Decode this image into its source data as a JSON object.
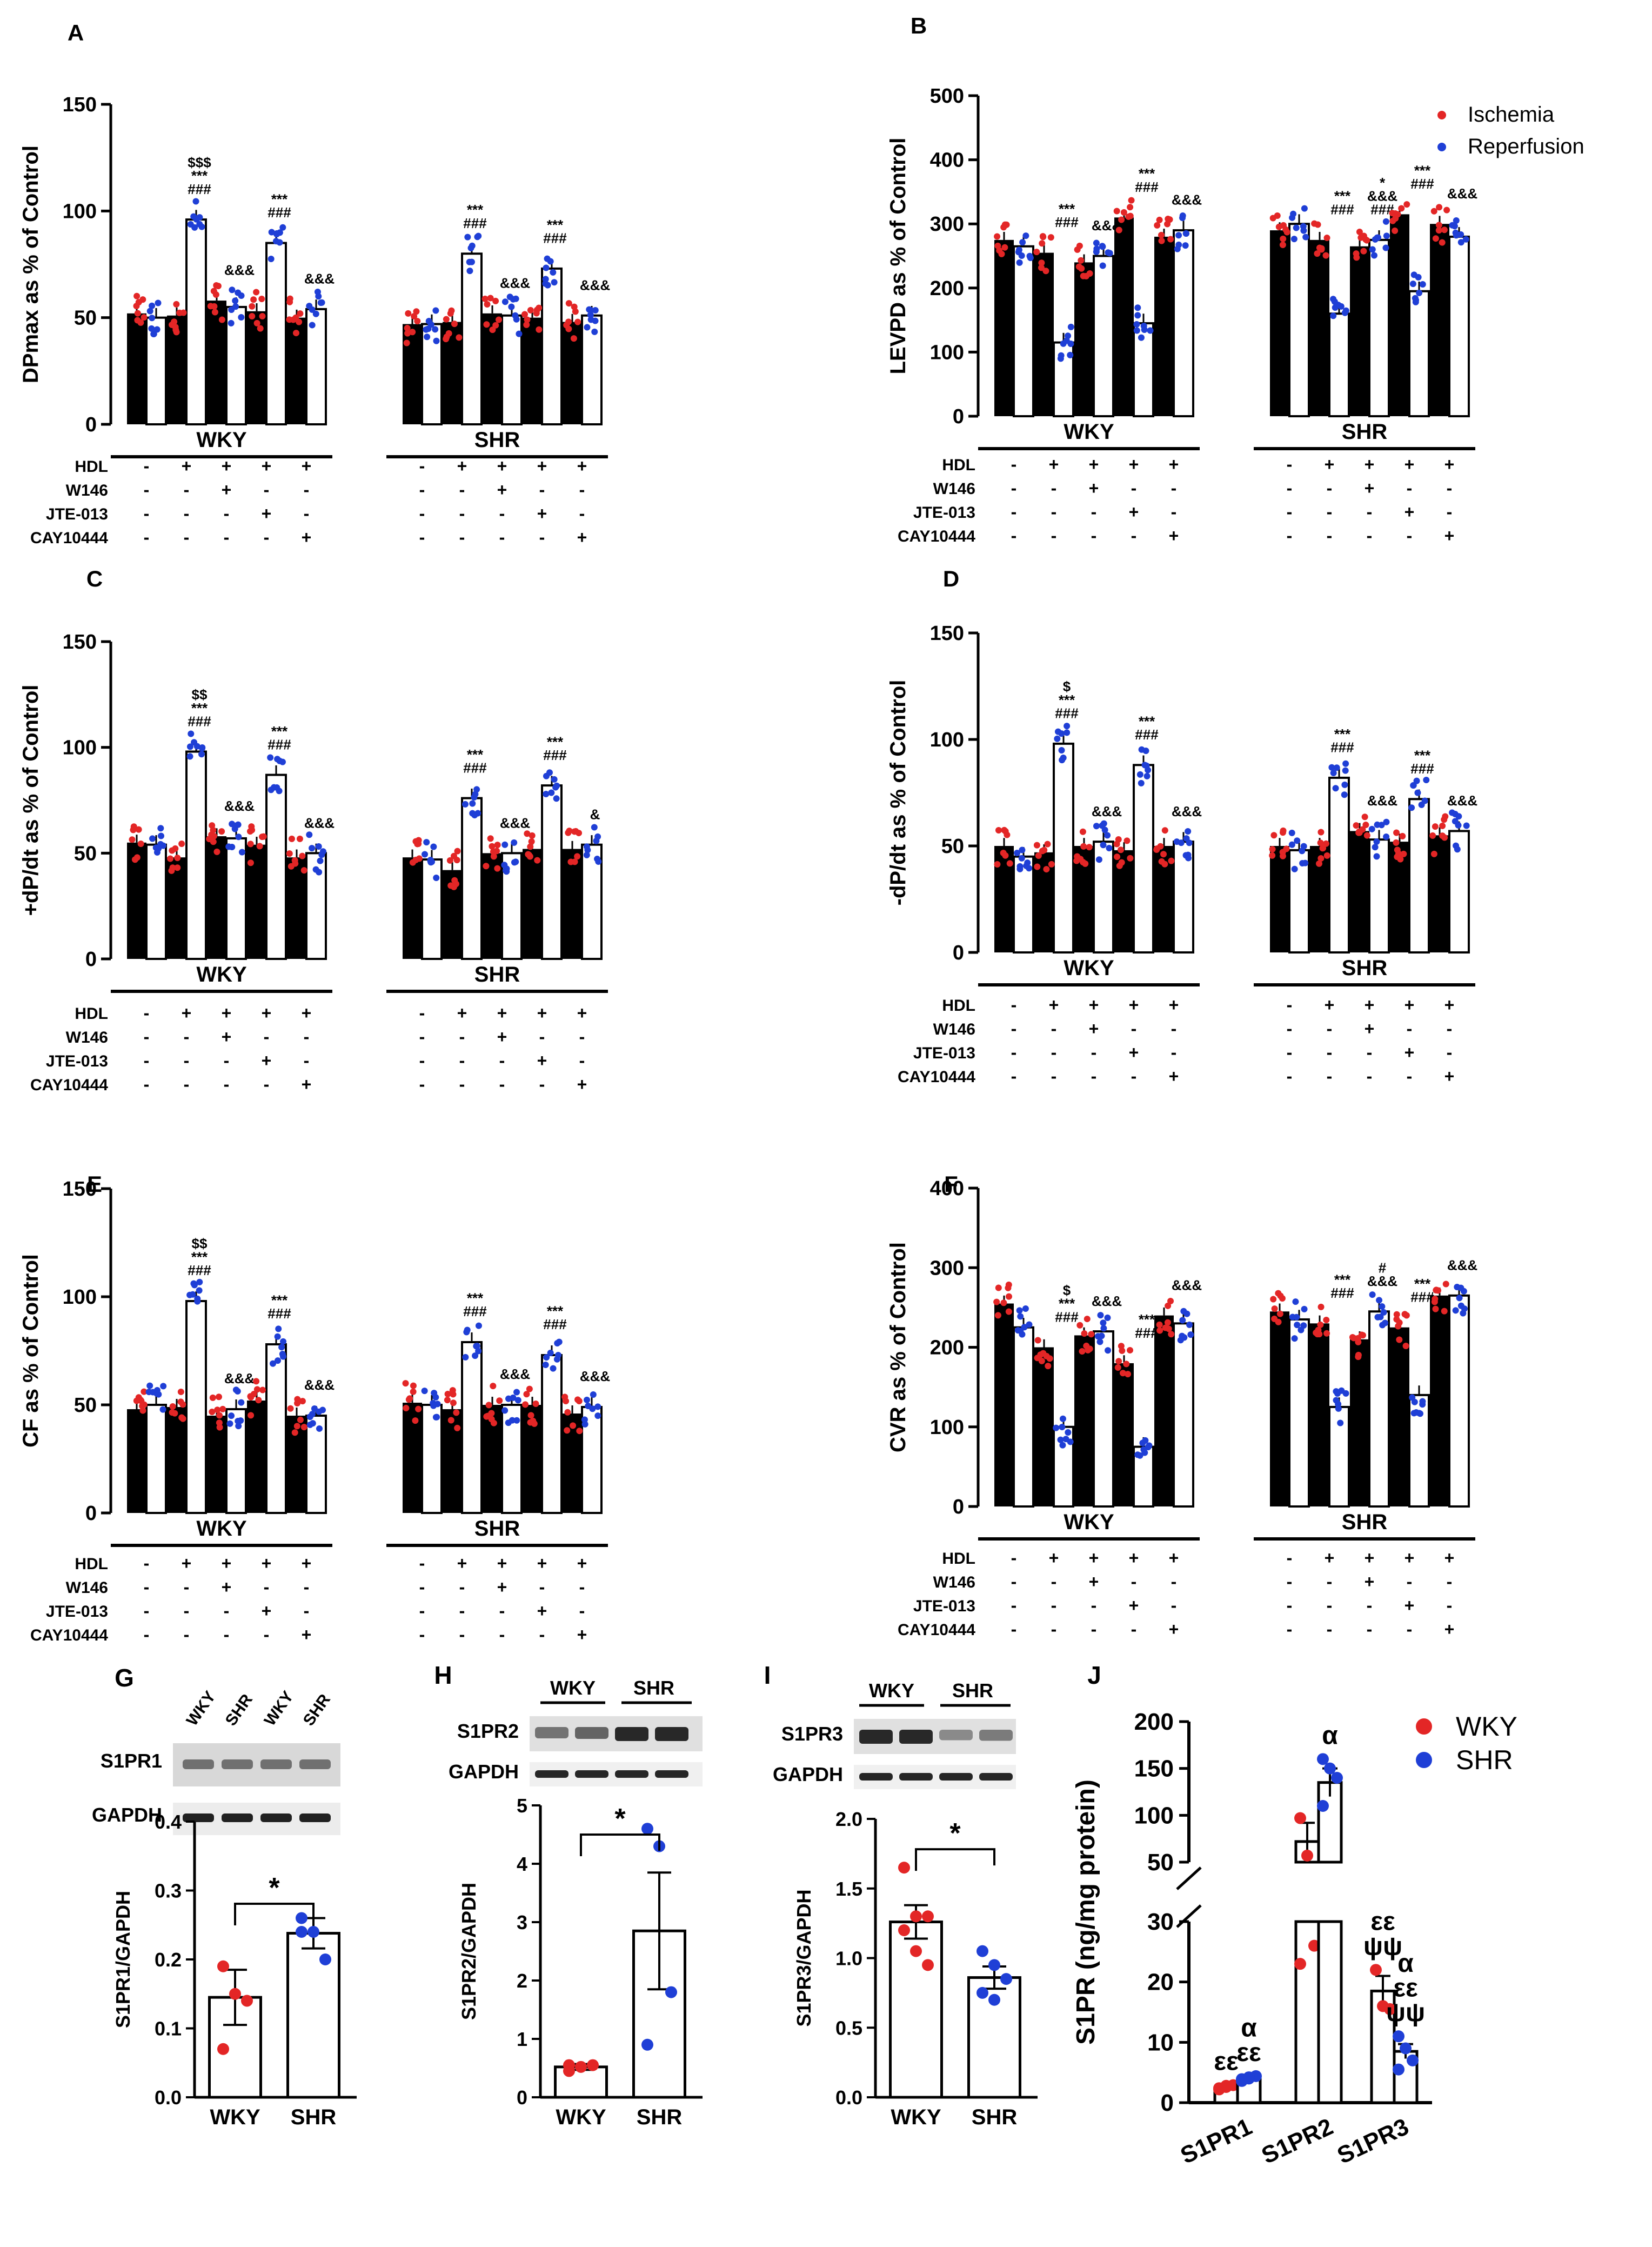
{
  "legend_top": {
    "ischemia": "Ischemia",
    "reperfusion": "Reperfusion",
    "ischemia_color": "#e32626",
    "reperfusion_color": "#1f3fd6"
  },
  "legend_j": {
    "wky": "WKY",
    "shr": "SHR",
    "wky_color": "#e32626",
    "shr_color": "#1f3fd6"
  },
  "chart_data": [
    {
      "panel": "A",
      "type": "bar",
      "ylabel": "DPmax as % of Control",
      "ylim": [
        0,
        150
      ],
      "ticks": [
        0,
        50,
        100,
        150
      ],
      "groups": [
        "WKY",
        "SHR"
      ],
      "treatments": {
        "HDL": [
          "-",
          "+",
          "+",
          "+",
          "+"
        ],
        "W146": [
          "-",
          "-",
          "+",
          "-",
          "-"
        ],
        "JTE-013": [
          "-",
          "-",
          "-",
          "+",
          "-"
        ],
        "CAY10444": [
          "-",
          "-",
          "-",
          "-",
          "+"
        ]
      },
      "series": [
        {
          "name": "Ischemia",
          "WKY": [
            52,
            51,
            58,
            53,
            50
          ],
          "SHR": [
            47,
            48,
            52,
            50,
            48
          ]
        },
        {
          "name": "Reperfusion",
          "WKY": [
            50,
            96,
            55,
            85,
            54
          ],
          "SHR": [
            47,
            80,
            51,
            73,
            51
          ]
        }
      ],
      "annotations": {
        "WKY": [
          "",
          "$$$\n***\n###",
          "&&&",
          "***\n###",
          "&&&"
        ],
        "SHR": [
          "",
          "***\n###",
          "&&&",
          "***\n###",
          "&&&"
        ]
      }
    },
    {
      "panel": "B",
      "type": "bar",
      "ylabel": "LEVPD as % of Control",
      "ylim": [
        0,
        500
      ],
      "ticks": [
        0,
        100,
        200,
        300,
        400,
        500
      ],
      "groups": [
        "WKY",
        "SHR"
      ],
      "treatments": {
        "HDL": [
          "-",
          "+",
          "+",
          "+",
          "+"
        ],
        "W146": [
          "-",
          "-",
          "+",
          "-",
          "-"
        ],
        "JTE-013": [
          "-",
          "-",
          "-",
          "+",
          "-"
        ],
        "CAY10444": [
          "-",
          "-",
          "-",
          "-",
          "+"
        ]
      },
      "series": [
        {
          "name": "Ischemia",
          "WKY": [
            275,
            255,
            240,
            310,
            280
          ],
          "SHR": [
            290,
            275,
            265,
            315,
            300
          ]
        },
        {
          "name": "Reperfusion",
          "WKY": [
            265,
            115,
            250,
            145,
            290
          ],
          "SHR": [
            300,
            160,
            275,
            195,
            280
          ]
        }
      ],
      "annotations": {
        "WKY": [
          "",
          "***\n###",
          "&&&",
          "***\n###",
          "&&&"
        ],
        "SHR": [
          "",
          "***\n###",
          "*\n&&&\n###",
          "***\n###",
          "&&&"
        ]
      }
    },
    {
      "panel": "C",
      "type": "bar",
      "ylabel": "+dP/dt as % of Control",
      "ylim": [
        0,
        150
      ],
      "ticks": [
        0,
        50,
        100,
        150
      ],
      "groups": [
        "WKY",
        "SHR"
      ],
      "treatments": {
        "HDL": [
          "-",
          "+",
          "+",
          "+",
          "+"
        ],
        "W146": [
          "-",
          "-",
          "+",
          "-",
          "-"
        ],
        "JTE-013": [
          "-",
          "-",
          "-",
          "+",
          "-"
        ],
        "CAY10444": [
          "-",
          "-",
          "-",
          "-",
          "+"
        ]
      },
      "series": [
        {
          "name": "Ischemia",
          "WKY": [
            55,
            48,
            58,
            54,
            48
          ],
          "SHR": [
            48,
            42,
            50,
            52,
            52
          ]
        },
        {
          "name": "Reperfusion",
          "WKY": [
            54,
            98,
            57,
            87,
            50
          ],
          "SHR": [
            47,
            76,
            50,
            82,
            54
          ]
        }
      ],
      "annotations": {
        "WKY": [
          "",
          "$$\n***\n###",
          "&&&",
          "***\n###",
          "&&&"
        ],
        "SHR": [
          "",
          "***\n###",
          "&&&",
          "***\n###",
          "&"
        ]
      }
    },
    {
      "panel": "D",
      "type": "bar",
      "ylabel": "-dP/dt as % of Control",
      "ylim": [
        0,
        150
      ],
      "ticks": [
        0,
        50,
        100,
        150
      ],
      "groups": [
        "WKY",
        "SHR"
      ],
      "treatments": {
        "HDL": [
          "-",
          "+",
          "+",
          "+",
          "+"
        ],
        "W146": [
          "-",
          "-",
          "+",
          "-",
          "-"
        ],
        "JTE-013": [
          "-",
          "-",
          "-",
          "+",
          "-"
        ],
        "CAY10444": [
          "-",
          "-",
          "-",
          "-",
          "+"
        ]
      },
      "series": [
        {
          "name": "Ischemia",
          "WKY": [
            50,
            47,
            50,
            48,
            50
          ],
          "SHR": [
            50,
            50,
            57,
            52,
            55
          ]
        },
        {
          "name": "Reperfusion",
          "WKY": [
            45,
            98,
            52,
            88,
            52
          ],
          "SHR": [
            48,
            82,
            53,
            72,
            57
          ]
        }
      ],
      "annotations": {
        "WKY": [
          "",
          "$\n***\n###",
          "&&&",
          "***\n###",
          "&&&"
        ],
        "SHR": [
          "",
          "***\n###",
          "&&&",
          "***\n###",
          "&&&"
        ]
      }
    },
    {
      "panel": "E",
      "type": "bar",
      "ylabel": "CF as % of Control",
      "ylim": [
        0,
        150
      ],
      "ticks": [
        0,
        50,
        100,
        150
      ],
      "groups": [
        "WKY",
        "SHR"
      ],
      "treatments": {
        "HDL": [
          "-",
          "+",
          "+",
          "+",
          "+"
        ],
        "W146": [
          "-",
          "-",
          "+",
          "-",
          "-"
        ],
        "JTE-013": [
          "-",
          "-",
          "-",
          "+",
          "-"
        ],
        "CAY10444": [
          "-",
          "-",
          "-",
          "-",
          "+"
        ]
      },
      "series": [
        {
          "name": "Ischemia",
          "WKY": [
            48,
            49,
            45,
            52,
            45
          ],
          "SHR": [
            51,
            48,
            50,
            50,
            46
          ]
        },
        {
          "name": "Reperfusion",
          "WKY": [
            50,
            98,
            48,
            78,
            45
          ],
          "SHR": [
            50,
            79,
            50,
            73,
            49
          ]
        }
      ],
      "annotations": {
        "WKY": [
          "",
          "$$\n***\n###",
          "&&&",
          "***\n###",
          "&&&"
        ],
        "SHR": [
          "",
          "***\n###",
          "&&&",
          "***\n###",
          "&&&"
        ]
      }
    },
    {
      "panel": "F",
      "type": "bar",
      "ylabel": "CVR as % of Control",
      "ylim": [
        0,
        400
      ],
      "ticks": [
        0,
        100,
        200,
        300,
        400
      ],
      "groups": [
        "WKY",
        "SHR"
      ],
      "treatments": {
        "HDL": [
          "-",
          "+",
          "+",
          "+",
          "+"
        ],
        "W146": [
          "-",
          "-",
          "+",
          "-",
          "-"
        ],
        "JTE-013": [
          "-",
          "-",
          "-",
          "+",
          "-"
        ],
        "CAY10444": [
          "-",
          "-",
          "-",
          "-",
          "+"
        ]
      },
      "series": [
        {
          "name": "Ischemia",
          "WKY": [
            255,
            200,
            215,
            180,
            240
          ],
          "SHR": [
            245,
            230,
            210,
            225,
            265
          ]
        },
        {
          "name": "Reperfusion",
          "WKY": [
            225,
            100,
            220,
            75,
            230
          ],
          "SHR": [
            235,
            125,
            245,
            140,
            265
          ]
        }
      ],
      "annotations": {
        "WKY": [
          "",
          "$\n***\n###",
          "&&&",
          "***\n###",
          "&&&"
        ],
        "SHR": [
          "",
          "***\n###",
          "#\n&&&",
          "***\n###",
          "&&&"
        ]
      }
    },
    {
      "panel": "G",
      "type": "bar",
      "blot_labels": [
        "S1PR1",
        "GAPDH"
      ],
      "lane_labels": [
        "WKY",
        "SHR",
        "WKY",
        "SHR"
      ],
      "ylabel": "S1PR1/GAPDH",
      "categories": [
        "WKY",
        "SHR"
      ],
      "values": [
        0.145,
        0.238
      ],
      "sem": [
        0.04,
        0.022
      ],
      "ylim": [
        0,
        0.4
      ],
      "ticks": [
        "0.0",
        "0.1",
        "0.2",
        "0.3",
        "0.4"
      ],
      "points": [
        [
          0.19,
          0.15,
          0.14,
          0.07
        ],
        [
          0.26,
          0.24,
          0.2,
          0.24
        ]
      ],
      "significance": "*"
    },
    {
      "panel": "H",
      "type": "bar",
      "blot_labels": [
        "S1PR2",
        "GAPDH"
      ],
      "lane_labels": [
        "WKY",
        "SHR"
      ],
      "ylabel": "S1PR2/GAPDH",
      "categories": [
        "WKY",
        "SHR"
      ],
      "values": [
        0.52,
        2.85
      ],
      "sem": [
        0.05,
        1.0
      ],
      "ylim": [
        0,
        5
      ],
      "ticks": [
        "0",
        "1",
        "2",
        "3",
        "4",
        "5"
      ],
      "points": [
        [
          0.45,
          0.52,
          0.55,
          0.55
        ],
        [
          4.6,
          4.3,
          1.8,
          0.9
        ]
      ],
      "significance": "*"
    },
    {
      "panel": "I",
      "type": "bar",
      "blot_labels": [
        "S1PR3",
        "GAPDH"
      ],
      "lane_labels": [
        "WKY",
        "SHR"
      ],
      "ylabel": "S1PR3/GAPDH",
      "categories": [
        "WKY",
        "SHR"
      ],
      "values": [
        1.26,
        0.86
      ],
      "sem": [
        0.12,
        0.08
      ],
      "ylim": [
        0,
        2.0
      ],
      "ticks": [
        "0.0",
        "0.5",
        "1.0",
        "1.5",
        "2.0"
      ],
      "points": [
        [
          1.65,
          1.3,
          1.3,
          1.2,
          1.05,
          0.95
        ],
        [
          1.05,
          0.95,
          0.85,
          0.75,
          0.7
        ]
      ],
      "significance": "*"
    },
    {
      "panel": "J",
      "type": "bar",
      "ylabel": "S1PR (ng/mg protein)",
      "categories": [
        "S1PR1",
        "S1PR2",
        "S1PR3"
      ],
      "series": [
        {
          "name": "WKY",
          "values": [
            2.5,
            72,
            18.5
          ],
          "sem": [
            0.4,
            20,
            2.5
          ]
        },
        {
          "name": "SHR",
          "values": [
            4.0,
            135,
            8.5
          ],
          "sem": [
            0.4,
            15,
            1.2
          ]
        }
      ],
      "points": {
        "WKY": [
          [
            2.2,
            2.6,
            2.9,
            2.4,
            2.8
          ],
          [
            97,
            57,
            26,
            23
          ],
          [
            22,
            16,
            15.5
          ]
        ],
        "SHR": [
          [
            3.6,
            4.0,
            4.4,
            3.9,
            4.2
          ],
          [
            160,
            150,
            140,
            110
          ],
          [
            11,
            9,
            7,
            5.5
          ]
        ]
      },
      "ticks_lower": [
        "0",
        "10",
        "20",
        "30"
      ],
      "ticks_upper": [
        "50",
        "100",
        "150",
        "200"
      ],
      "axis_break": [
        30,
        50
      ],
      "ylim": [
        0,
        200
      ],
      "annotations": {
        "WKY": [
          "εε",
          "",
          "εε\nψψ"
        ],
        "SHR": [
          "α\nεε",
          "α",
          "α\nεε\nψψ"
        ]
      }
    }
  ]
}
